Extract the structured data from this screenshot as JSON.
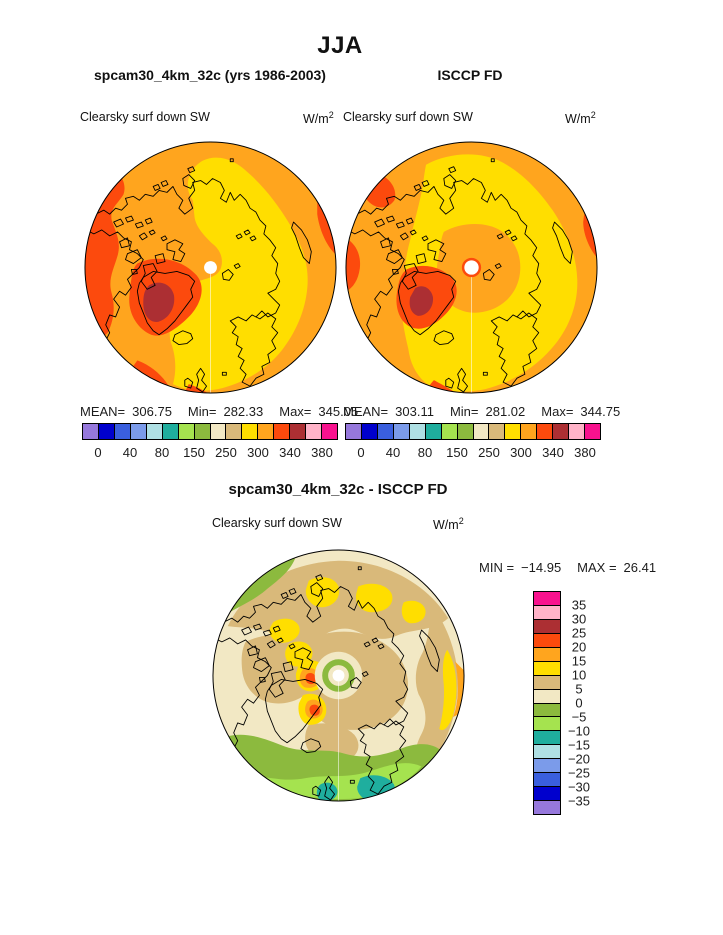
{
  "figure": {
    "title": "JJA",
    "row1": {
      "model": {
        "subtitle": "spcam30_4km_32c (yrs 1986-2003)",
        "field_label": "Clearsky surf down SW",
        "units_base": "W/m",
        "units_exp": "2",
        "stats": {
          "mean_label": "MEAN=",
          "mean": "306.75",
          "min_label": "Min=",
          "min": "282.33",
          "max_label": "Max=",
          "max": "345.05"
        }
      },
      "obs": {
        "subtitle": "ISCCP FD",
        "field_label": "Clearsky surf down SW",
        "units_base": "W/m",
        "units_exp": "2",
        "stats": {
          "mean_label": "MEAN=",
          "mean": "303.11",
          "min_label": "Min=",
          "min": "281.02",
          "max_label": "Max=",
          "max": "344.75"
        }
      },
      "colorbar": {
        "tick_labels": [
          "0",
          "40",
          "80",
          "150",
          "250",
          "300",
          "340",
          "380"
        ]
      }
    },
    "row2": {
      "diff": {
        "subtitle": "spcam30_4km_32c - ISCCP FD",
        "field_label": "Clearsky surf down SW",
        "units_base": "W/m",
        "units_exp": "2",
        "stats": {
          "min_label": "MIN =",
          "min": "−14.95",
          "max_label": "MAX =",
          "max": "26.41"
        }
      },
      "colorbar": {
        "tick_labels": [
          "35",
          "30",
          "25",
          "20",
          "15",
          "10",
          "5",
          "0",
          "−5",
          "−10",
          "−15",
          "−20",
          "−25",
          "−30",
          "−35"
        ]
      }
    }
  },
  "palette": {
    "purple": "#9678DC",
    "dark_blue": "#0000CD",
    "blue": "#3A5FDE",
    "light_blue": "#7B9BEA",
    "pale_blue": "#AFE0E4",
    "teal": "#1FAE9E",
    "light_green": "#A5E34F",
    "olive_green": "#8CBA3E",
    "cream": "#F2E8C4",
    "tan": "#D9B97A",
    "yellow": "#FFDE00",
    "orange": "#FFA51E",
    "orange_red": "#FC4A0D",
    "dark_red": "#AC2F33",
    "pink": "#FFB3C8",
    "magenta": "#F8128E"
  },
  "scale_colors_low_to_high": [
    "purple",
    "dark_blue",
    "blue",
    "light_blue",
    "pale_blue",
    "teal",
    "light_green",
    "olive_green",
    "cream",
    "tan",
    "yellow",
    "orange",
    "orange_red",
    "dark_red",
    "pink",
    "magenta"
  ],
  "chart_data": [
    {
      "type": "map",
      "panel": "model",
      "season": "JJA",
      "title": "spcam30_4km_32c (yrs 1986-2003)",
      "variable": "Clearsky surf down SW",
      "units": "W/m2",
      "projection": "north-polar-stereographic",
      "mean": 306.75,
      "min": 282.33,
      "max": 345.05,
      "colorbar_tick_levels": [
        0,
        40,
        80,
        150,
        250,
        300,
        340,
        380
      ]
    },
    {
      "type": "map",
      "panel": "observations",
      "season": "JJA",
      "title": "ISCCP FD",
      "variable": "Clearsky surf down SW",
      "units": "W/m2",
      "projection": "north-polar-stereographic",
      "mean": 303.11,
      "min": 281.02,
      "max": 344.75,
      "colorbar_tick_levels": [
        0,
        40,
        80,
        150,
        250,
        300,
        340,
        380
      ]
    },
    {
      "type": "map",
      "panel": "difference",
      "season": "JJA",
      "title": "spcam30_4km_32c - ISCCP FD",
      "variable": "Clearsky surf down SW",
      "units": "W/m2",
      "projection": "north-polar-stereographic",
      "min": -14.95,
      "max": 26.41,
      "colorbar_tick_levels": [
        -35,
        -30,
        -25,
        -20,
        -15,
        -10,
        -5,
        0,
        5,
        10,
        15,
        20,
        25,
        30,
        35
      ]
    }
  ]
}
